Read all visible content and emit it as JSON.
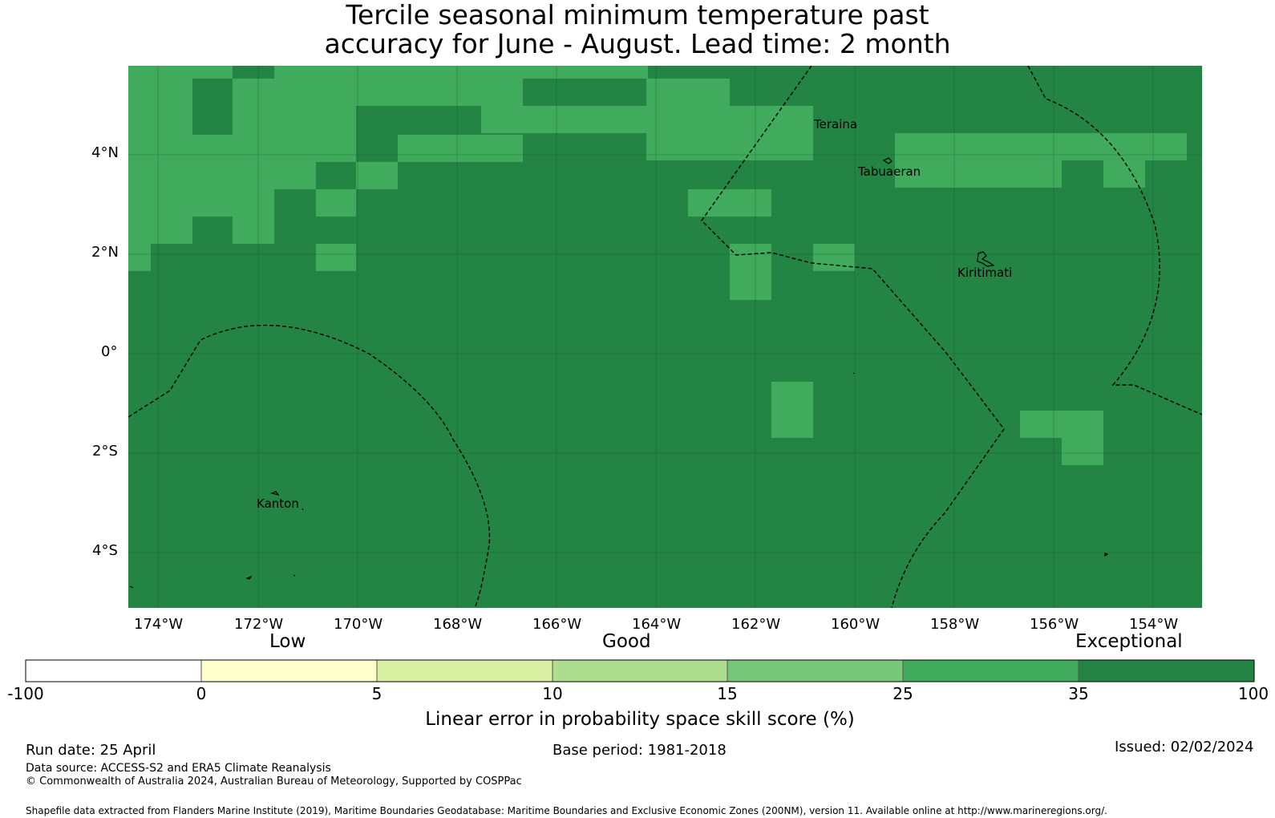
{
  "title": {
    "line1": "Tercile seasonal minimum temperature past",
    "line2": "accuracy for June - August. Lead time: 2 month"
  },
  "map": {
    "lon_range": [
      -175.0,
      -152.8
    ],
    "lat_range": [
      -5.0,
      5.8
    ],
    "lon_ticks": [
      "174°W",
      "172°W",
      "170°W",
      "168°W",
      "166°W",
      "164°W",
      "162°W",
      "160°W",
      "158°W",
      "156°W",
      "154°W"
    ],
    "lat_ticks": [
      "4°N",
      "2°N",
      "0°",
      "2°S",
      "4°S"
    ],
    "base_category": "35-100",
    "skill_colors": {
      "25-35": "#41ab5d",
      "35-100": "#238443"
    },
    "places": [
      {
        "name": "Teraina",
        "label": "Teraina"
      },
      {
        "name": "Tabuaeran",
        "label": "Tabuaeran"
      },
      {
        "name": "Kiritimati",
        "label": "Kiritimati"
      },
      {
        "name": "Kanton",
        "label": "Kanton"
      }
    ]
  },
  "colorbar": {
    "category_labels": {
      "low": "Low",
      "good": "Good",
      "exceptional": "Exceptional"
    },
    "bins": [
      {
        "range": "-100 to 0",
        "color": "#ffffff"
      },
      {
        "range": "0 to 5",
        "color": "#ffffcc"
      },
      {
        "range": "5 to 10",
        "color": "#d9f0a3"
      },
      {
        "range": "10 to 15",
        "color": "#addd8e"
      },
      {
        "range": "15 to 25",
        "color": "#78c679"
      },
      {
        "range": "25 to 35",
        "color": "#41ab5d"
      },
      {
        "range": "35 to 100",
        "color": "#238443"
      }
    ],
    "ticks": [
      "-100",
      "0",
      "5",
      "10",
      "15",
      "25",
      "35",
      "100"
    ],
    "axis_label": "Linear error in probability space skill score (%)"
  },
  "footer": {
    "run_date": "Run date: 25 April",
    "base_period": "Base period: 1981-2018",
    "issued": "Issued: 02/02/2024",
    "data_source": "Data source: ACCESS-S2 and ERA5 Climate Reanalysis",
    "copyright": "© Commonwealth of Australia 2024, Australian Bureau of Meteorology, Supported by COSPPac",
    "shapefile": "Shapefile data extracted from Flanders Marine Institute (2019), Maritime Boundaries Geodatabase: Maritime Boundaries and Exclusive Economic Zones (200NM), version 11. Available online at http://www.marineregions.org/."
  }
}
